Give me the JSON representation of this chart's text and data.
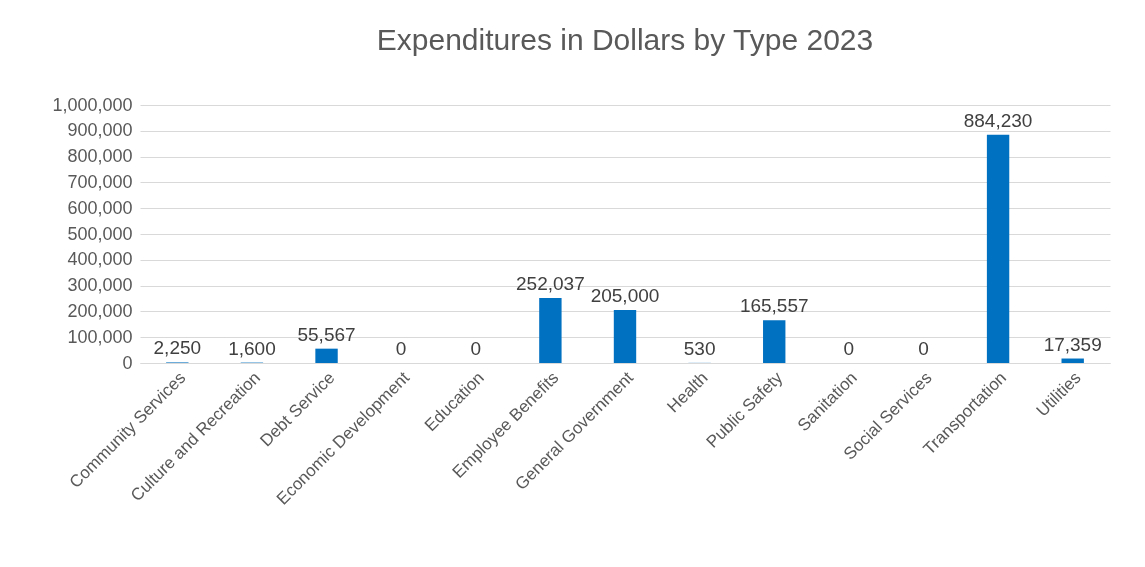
{
  "chart_data": {
    "type": "bar",
    "title": "Expenditures in Dollars by Type 2023",
    "categories": [
      "Community Services",
      "Culture and Recreation",
      "Debt Service",
      "Economic Development",
      "Education",
      "Employee Benefits",
      "General Government",
      "Health",
      "Public Safety",
      "Sanitation",
      "Social Services",
      "Transportation",
      "Utilities"
    ],
    "values": [
      2250,
      1600,
      55567,
      0,
      0,
      252037,
      205000,
      530,
      165557,
      0,
      0,
      884230,
      17359
    ],
    "value_labels": [
      "2,250",
      "1,600",
      "55,567",
      "0",
      "0",
      "252,037",
      "205,000",
      "530",
      "165,557",
      "0",
      "0",
      "884,230",
      "17,359"
    ],
    "color": "#0070c0",
    "ylim": [
      0,
      1000000
    ],
    "yticks": [
      {
        "value": 0,
        "label": "0"
      },
      {
        "value": 100000,
        "label": "100,000"
      },
      {
        "value": 200000,
        "label": "200,000"
      },
      {
        "value": 300000,
        "label": "300,000"
      },
      {
        "value": 400000,
        "label": "400,000"
      },
      {
        "value": 500000,
        "label": "500,000"
      },
      {
        "value": 600000,
        "label": "600,000"
      },
      {
        "value": 700000,
        "label": "700,000"
      },
      {
        "value": 800000,
        "label": "800,000"
      },
      {
        "value": 900000,
        "label": "900,000"
      },
      {
        "value": 1000000,
        "label": "1,000,000"
      }
    ],
    "grid": "y"
  }
}
